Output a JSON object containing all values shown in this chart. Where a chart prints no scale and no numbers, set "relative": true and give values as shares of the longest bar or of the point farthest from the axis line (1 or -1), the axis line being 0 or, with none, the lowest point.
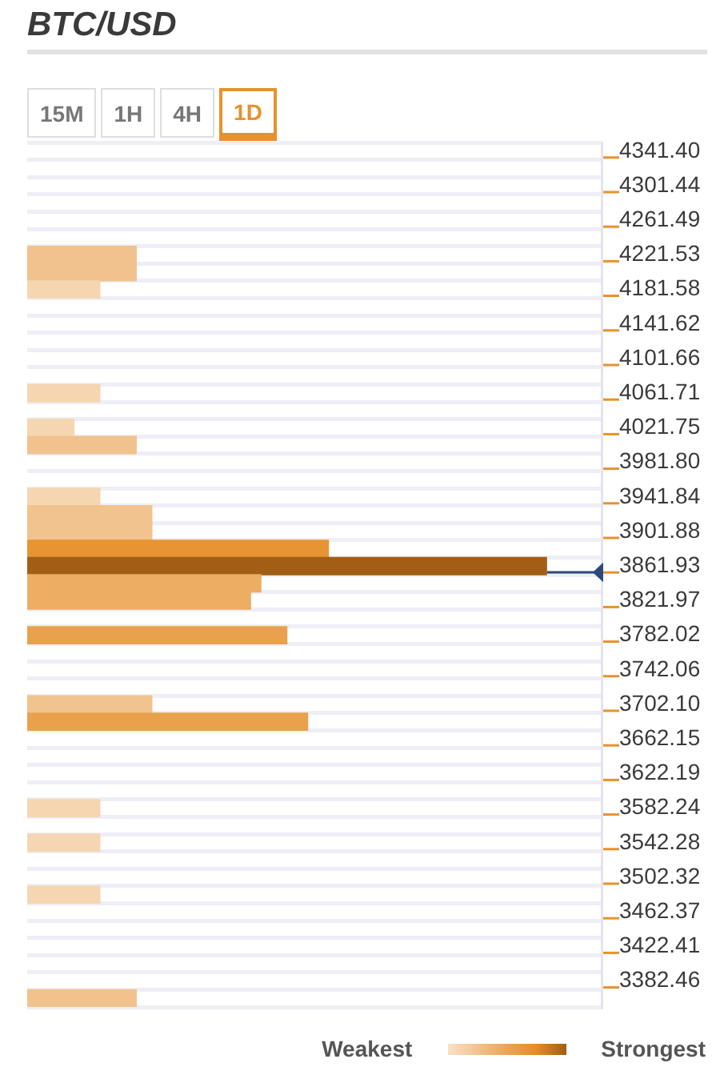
{
  "chart_data": {
    "type": "bar",
    "title": "BTC/USD",
    "orientation": "horizontal",
    "relative": true,
    "categories": [
      "4341.40",
      null,
      "4301.44",
      null,
      "4261.49",
      null,
      "4221.53",
      null,
      "4181.58",
      null,
      "4141.62",
      null,
      "4101.66",
      null,
      "4061.71",
      null,
      "4021.75",
      null,
      "3981.80",
      null,
      "3941.84",
      null,
      "3901.88",
      null,
      "3861.93",
      null,
      "3821.97",
      null,
      "3782.02",
      null,
      "3742.06",
      null,
      "3702.10",
      null,
      "3662.15",
      null,
      "3622.19",
      null,
      "3582.24",
      null,
      "3542.28",
      null,
      "3502.32",
      null,
      "3462.37",
      null,
      "3422.41",
      null,
      "3382.46",
      null
    ],
    "values": [
      null,
      null,
      null,
      null,
      null,
      null,
      0.21,
      0.21,
      0.14,
      null,
      null,
      null,
      null,
      null,
      0.14,
      null,
      0.09,
      0.21,
      null,
      null,
      0.14,
      0.24,
      0.24,
      0.58,
      1,
      0.45,
      0.43,
      null,
      0.5,
      null,
      null,
      null,
      0.24,
      0.54,
      null,
      null,
      null,
      null,
      0.14,
      null,
      0.14,
      null,
      null,
      0.14,
      null,
      null,
      null,
      null,
      null,
      0.21
    ],
    "colors": [
      null,
      null,
      null,
      null,
      null,
      null,
      "#f1c28e",
      "#f1c28e",
      "#f6d5b1",
      null,
      null,
      null,
      null,
      null,
      "#f6d5b1",
      null,
      "#f6d5b1",
      "#f1c28e",
      null,
      null,
      "#f6d5b1",
      "#f1c38f",
      "#f1c38f",
      "#e69532",
      "#a15e14",
      "#edad63",
      "#edad63",
      null,
      "#e9a14b",
      null,
      null,
      null,
      "#f1c38f",
      "#e9a14b",
      null,
      null,
      null,
      null,
      "#f6d5b1",
      null,
      "#f6d5b1",
      null,
      null,
      "#f6d5b1",
      null,
      null,
      null,
      null,
      null,
      "#f1c28e"
    ],
    "grid": "y",
    "annotations": [
      "15M",
      "1H",
      "4H",
      "1D",
      "Weakest",
      "Strongest"
    ]
  }
}
